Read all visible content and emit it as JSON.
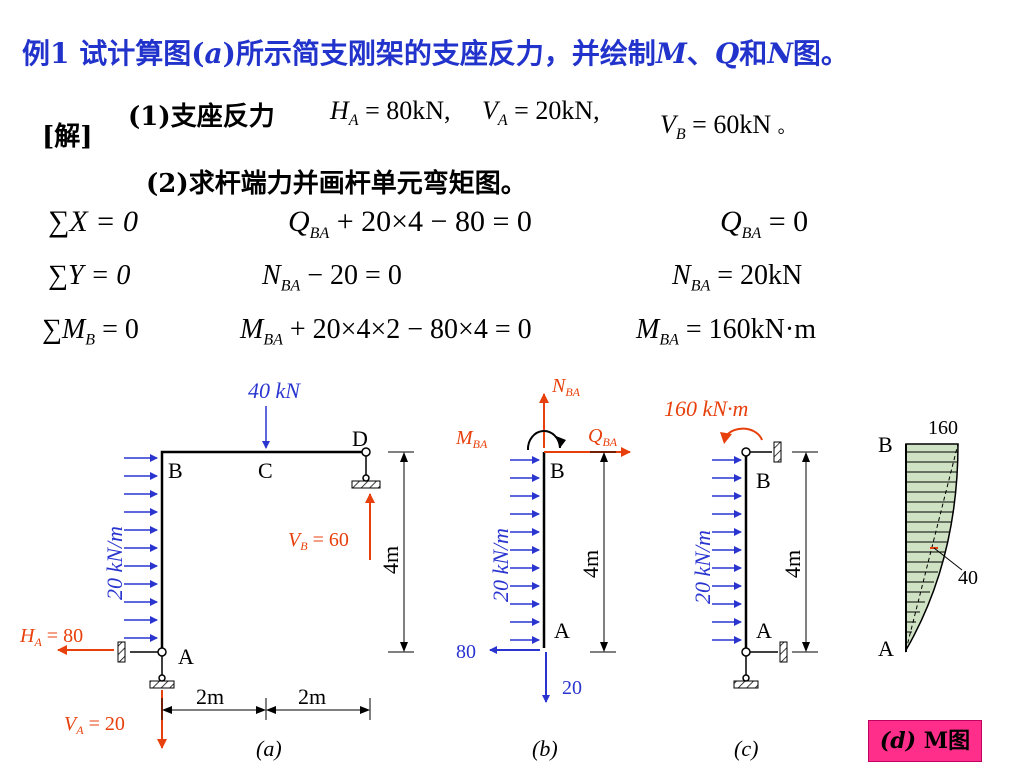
{
  "title": {
    "prefix": "例1 试计算图(",
    "a": "a",
    "rest": ")所示简支刚架的支座反力，并绘制",
    "M": "M",
    "sep": "、",
    "Q": "Q",
    "and": "和",
    "N": "N",
    "end": "图。"
  },
  "solution_label": "[解]",
  "step1": {
    "label": "(1)支座反力",
    "HA": "H",
    "HA_sub": "A",
    "HA_val": "= 80kN,",
    "VA": "V",
    "VA_sub": "A",
    "VA_val": "= 20kN,",
    "VB": "V",
    "VB_sub": "B",
    "VB_val": "= 60kN",
    "VB_end": "。"
  },
  "step2": {
    "label": "(2)求杆端力并画杆单元弯矩图。"
  },
  "equations": {
    "r1": {
      "a": "∑X = 0",
      "b1": "Q",
      "b_sub": "BA",
      "b2": " + 20×4 − 80 = 0",
      "c1": "Q",
      "c_sub": "BA",
      "c2": " = 0"
    },
    "r2": {
      "a": "∑Y = 0",
      "b1": "N",
      "b_sub": "BA",
      "b2": " − 20 = 0",
      "c1": "N",
      "c_sub": "BA",
      "c2": " = 20kN"
    },
    "r3": {
      "a1": "∑M",
      "a_sub": "B",
      "a2": " = 0",
      "b1": "M",
      "b_sub": "BA",
      "b2": " + 20×4×2 − 80×4 = 0",
      "c1": "M",
      "c_sub": "BA",
      "c2": " = 160kN·m"
    }
  },
  "fig_a": {
    "load_top": "40 kN",
    "D": "D",
    "B": "B",
    "C": "C",
    "A": "A",
    "dist_load": "20 kN/m",
    "VB": "V",
    "VB_sub": "B",
    "VB_val": " = 60",
    "HA": "H",
    "HA_sub": "A",
    "HA_val": " = 80",
    "VA": "V",
    "VA_sub": "A",
    "VA_val": " = 20",
    "height": "4m",
    "dim1": "2m",
    "dim2": "2m",
    "caption": "(a)"
  },
  "fig_b": {
    "N": "N",
    "N_sub": "BA",
    "M": "M",
    "M_sub": "BA",
    "Q": "Q",
    "Q_sub": "BA",
    "B": "B",
    "A": "A",
    "dist_load": "20 kN/m",
    "height": "4m",
    "left_force": "80",
    "down_force": "20",
    "caption": "(b)"
  },
  "fig_c": {
    "moment": "160 kN·m",
    "B": "B",
    "A": "A",
    "dist_load": "20 kN/m",
    "height": "4m",
    "caption": "(c)"
  },
  "fig_d": {
    "top_val": "160",
    "mid_val": "40",
    "B": "B",
    "A": "A",
    "badge_d": "(d)",
    "badge_text": " M图"
  },
  "colors": {
    "title": "#2233cc",
    "blue": "#2a35d0",
    "red": "#e8400c",
    "hatch_fill": "#cfe3c4"
  }
}
